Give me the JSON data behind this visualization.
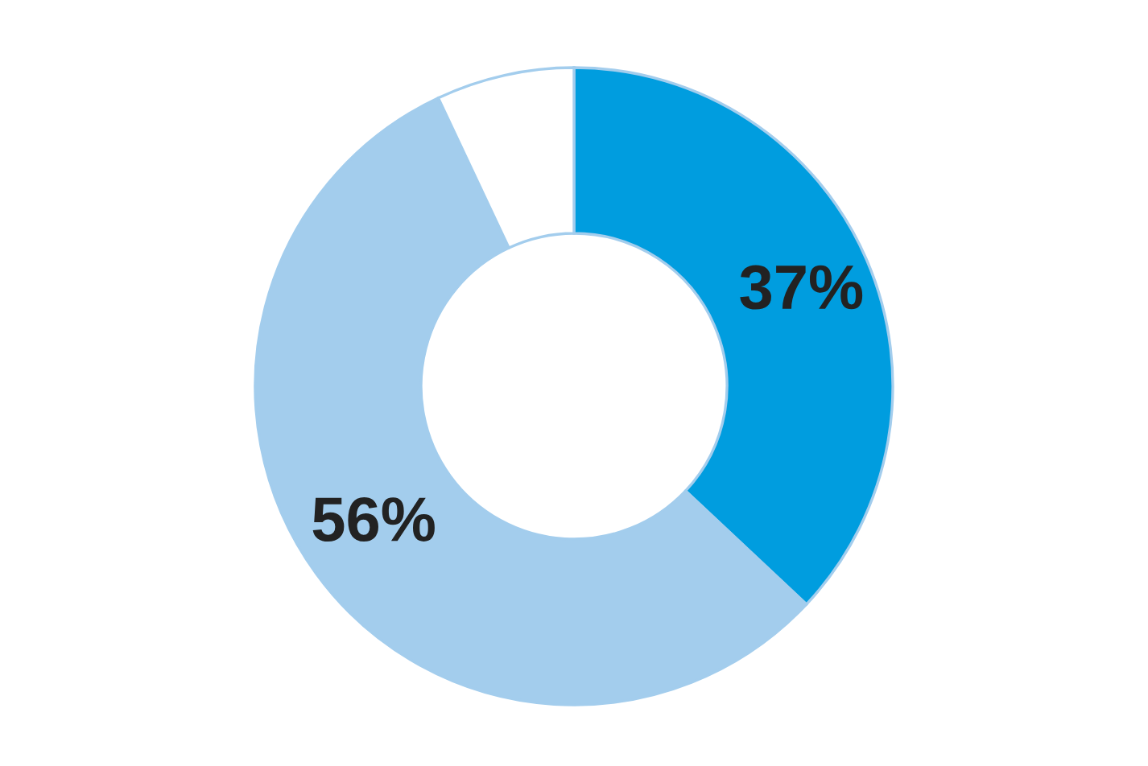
{
  "chart_data": {
    "type": "donut",
    "categories": [
      null,
      null,
      null
    ],
    "values": [
      37,
      56,
      7
    ],
    "colors": [
      "#009ddf",
      "#a3cded",
      "#ffffff"
    ],
    "value_labels": [
      "37%",
      "56%",
      null
    ]
  }
}
